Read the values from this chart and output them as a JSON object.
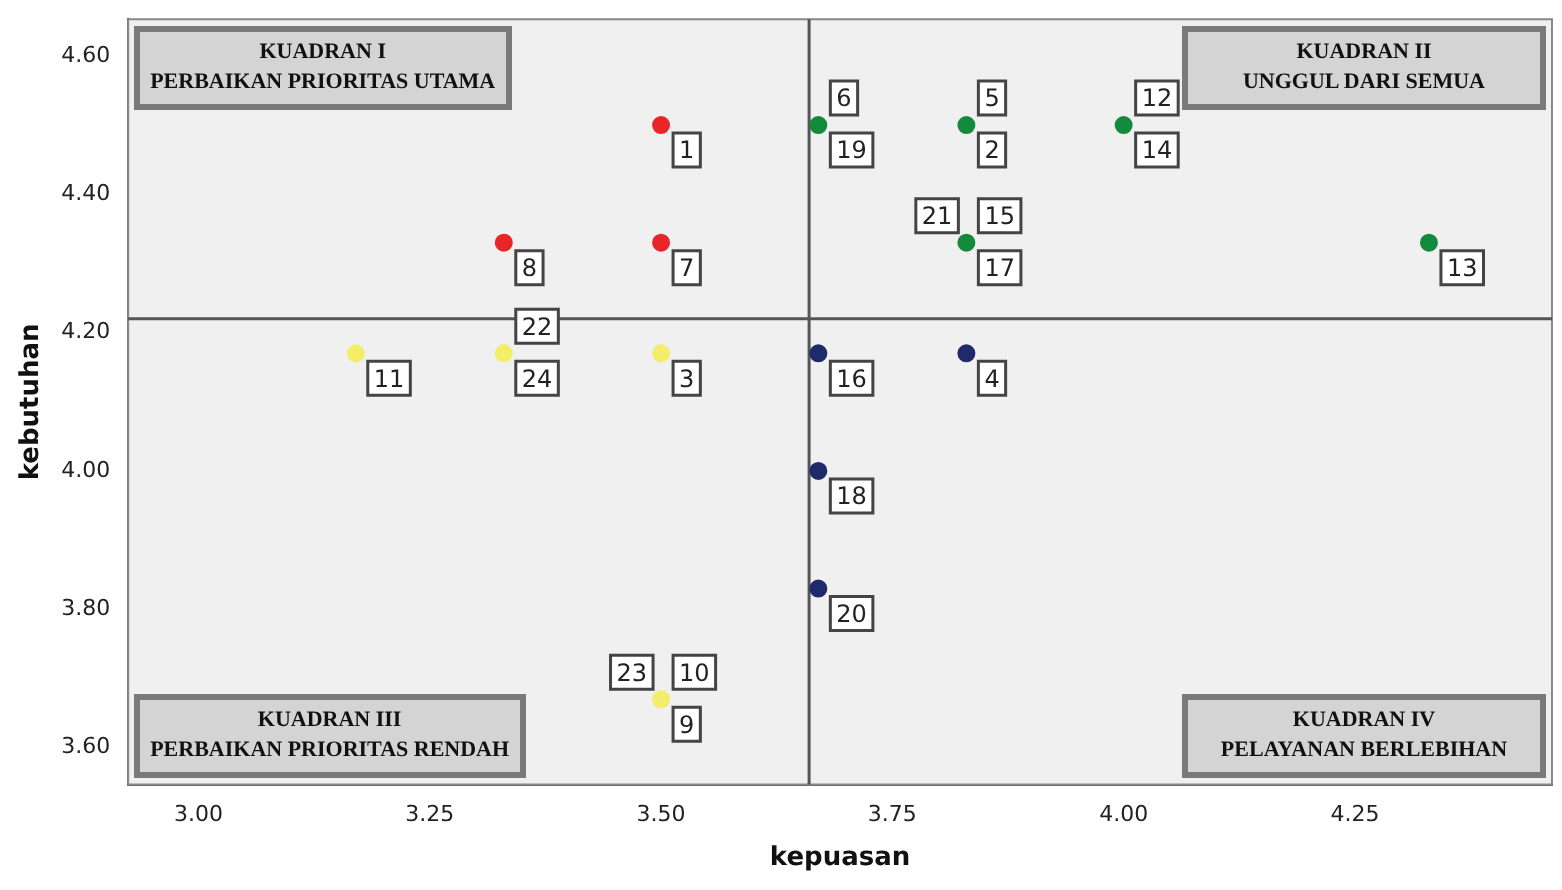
{
  "chart_data": {
    "type": "scatter",
    "xlabel": "kepuasan",
    "ylabel": "kebutuhan",
    "marker": "circle",
    "grid": false,
    "legend": false,
    "xlim": [
      2.924,
      4.463
    ],
    "ylim": [
      3.547,
      4.653
    ],
    "xticks": [
      {
        "value": 3,
        "label": "3.00"
      },
      {
        "value": 3.25,
        "label": "3.25"
      },
      {
        "value": 3.5,
        "label": "3.50"
      },
      {
        "value": 3.75,
        "label": "3.75"
      },
      {
        "value": 4,
        "label": "4.00"
      },
      {
        "value": 4.25,
        "label": "4.25"
      }
    ],
    "yticks": [
      {
        "value": 3.6,
        "label": "3.60"
      },
      {
        "value": 3.8,
        "label": "3.80"
      },
      {
        "value": 4,
        "label": "4.00"
      },
      {
        "value": 4.2,
        "label": "4.20"
      },
      {
        "value": 4.4,
        "label": "4.40"
      },
      {
        "value": 4.6,
        "label": "4.60"
      }
    ],
    "ref_lines": [
      {
        "axis": "x",
        "value": 3.66,
        "color": "#555555"
      },
      {
        "axis": "y",
        "value": 4.22,
        "color": "#555555"
      }
    ],
    "series": [
      {
        "color": "#e8262a",
        "x": [
          3.5,
          3.33,
          3.5
        ],
        "values": [
          4.5,
          4.33,
          4.33
        ]
      },
      {
        "color": "#148a3c",
        "x": [
          3.67,
          3.83,
          4.0,
          3.83,
          4.33
        ],
        "values": [
          4.5,
          4.5,
          4.5,
          4.33,
          4.33
        ]
      },
      {
        "color": "#f2ee6a",
        "x": [
          3.17,
          3.33,
          3.5,
          3.5
        ],
        "values": [
          4.17,
          4.17,
          4.17,
          3.67
        ]
      },
      {
        "color": "#1f2a6b",
        "x": [
          3.67,
          3.83,
          3.67,
          3.67
        ],
        "values": [
          4.17,
          4.17,
          4.0,
          3.83
        ]
      }
    ],
    "annotations": [
      "KUADRAN I\nPERBAIKAN PRIORITAS UTAMA",
      "KUADRAN II\nUNGGUL DARI SEMUA",
      "KUADRAN III\nPERBAIKAN PRIORITAS RENDAH",
      "KUADRAN IV\nPELAYANAN BERLEBIHAN",
      {
        "text": "1",
        "x": 3.5,
        "y": 4.5
      },
      {
        "text": "8",
        "x": 3.33,
        "y": 4.33
      },
      {
        "text": "7",
        "x": 3.5,
        "y": 4.33
      },
      {
        "text": "19",
        "x": 3.67,
        "y": 4.5
      },
      {
        "text": "6",
        "x": 3.67,
        "y": 4.5
      },
      {
        "text": "2",
        "x": 3.83,
        "y": 4.5
      },
      {
        "text": "5",
        "x": 3.83,
        "y": 4.5
      },
      {
        "text": "14",
        "x": 4.0,
        "y": 4.5
      },
      {
        "text": "12",
        "x": 4.0,
        "y": 4.5
      },
      {
        "text": "17",
        "x": 3.83,
        "y": 4.33
      },
      {
        "text": "15",
        "x": 3.83,
        "y": 4.33
      },
      {
        "text": "21",
        "x": 3.83,
        "y": 4.33
      },
      {
        "text": "13",
        "x": 4.33,
        "y": 4.33
      },
      {
        "text": "11",
        "x": 3.17,
        "y": 4.17
      },
      {
        "text": "24",
        "x": 3.33,
        "y": 4.17
      },
      {
        "text": "22",
        "x": 3.33,
        "y": 4.17
      },
      {
        "text": "3",
        "x": 3.5,
        "y": 4.17
      },
      {
        "text": "9",
        "x": 3.5,
        "y": 3.67
      },
      {
        "text": "10",
        "x": 3.5,
        "y": 3.67
      },
      {
        "text": "23",
        "x": 3.5,
        "y": 3.67
      },
      {
        "text": "16",
        "x": 3.67,
        "y": 4.17
      },
      {
        "text": "4",
        "x": 3.83,
        "y": 4.17
      },
      {
        "text": "18",
        "x": 3.67,
        "y": 4.0
      },
      {
        "text": "20",
        "x": 3.67,
        "y": 3.83
      }
    ]
  }
}
